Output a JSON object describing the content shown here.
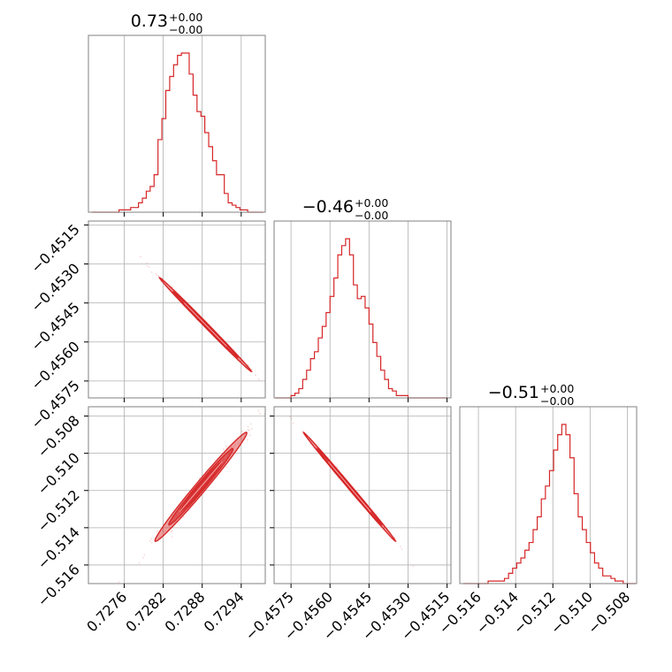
{
  "chart_data": {
    "type": "corner",
    "color": "#d62728",
    "parameters": [
      {
        "title": "0.73",
        "err_plus": "+0.00",
        "err_minus": "−0.00",
        "range": [
          0.72705,
          0.72977
        ],
        "ticks": [
          0.7276,
          0.7282,
          0.7288,
          0.7294
        ],
        "tick_labels": [
          "0.7276",
          "0.7282",
          "0.7288",
          "0.7294"
        ],
        "histogram": {
          "bins": [
            0.7271,
            0.72716,
            0.72722,
            0.72728,
            0.72734,
            0.7274,
            0.72746,
            0.72752,
            0.72758,
            0.72764,
            0.7277,
            0.72776,
            0.72782,
            0.72788,
            0.72794,
            0.728,
            0.72806,
            0.72812,
            0.72818,
            0.72824,
            0.7283,
            0.72836,
            0.72842,
            0.72848,
            0.72854,
            0.7286,
            0.72866,
            0.72872,
            0.72878,
            0.72884,
            0.7289,
            0.72896,
            0.72902,
            0.72908,
            0.72914,
            0.7292,
            0.72926,
            0.72932,
            0.72938,
            0.72944,
            0.7295,
            0.72956,
            0.72962,
            0.72968,
            0.72974
          ],
          "heights": [
            0,
            0,
            0,
            0,
            0,
            0,
            0,
            1,
            1,
            1,
            2,
            2,
            4,
            6,
            9,
            11,
            16,
            31,
            40,
            52,
            58,
            63,
            67,
            68,
            68,
            59,
            50,
            43,
            41,
            34,
            28,
            22,
            16,
            16,
            8,
            4,
            3,
            2,
            1,
            1,
            0,
            0,
            0,
            0,
            0
          ]
        }
      },
      {
        "title": "−0.46",
        "err_plus": "+0.00",
        "err_minus": "−0.00",
        "range": [
          -0.45815,
          -0.45135
        ],
        "ticks": [
          -0.4575,
          -0.456,
          -0.4545,
          -0.453,
          -0.4515
        ],
        "tick_labels": [
          "−0.4575",
          "−0.4560",
          "−0.4545",
          "−0.4530",
          "−0.4515"
        ],
        "histogram": {
          "bins": [
            -0.4581,
            -0.45795,
            -0.4578,
            -0.45765,
            -0.4575,
            -0.45735,
            -0.4572,
            -0.45705,
            -0.4569,
            -0.45675,
            -0.4566,
            -0.45645,
            -0.4563,
            -0.45615,
            -0.456,
            -0.45585,
            -0.4557,
            -0.45555,
            -0.4554,
            -0.45525,
            -0.4551,
            -0.45495,
            -0.4548,
            -0.45465,
            -0.4545,
            -0.45435,
            -0.4542,
            -0.45405,
            -0.4539,
            -0.45375,
            -0.4536,
            -0.45345,
            -0.4533,
            -0.45315,
            -0.453,
            -0.45285,
            -0.4527,
            -0.45255,
            -0.4524,
            -0.45225,
            -0.4521,
            -0.45195,
            -0.4518,
            -0.45165,
            -0.4515
          ],
          "heights": [
            0,
            0,
            0,
            0,
            1,
            2,
            4,
            8,
            12,
            17,
            20,
            26,
            31,
            37,
            44,
            52,
            62,
            66,
            69,
            62,
            49,
            43,
            44,
            39,
            32,
            24,
            18,
            12,
            8,
            4,
            3,
            1,
            1,
            1,
            0,
            0,
            0,
            0,
            0,
            0,
            0,
            0,
            0,
            0,
            0
          ]
        }
      },
      {
        "title": "−0.51",
        "err_plus": "+0.00",
        "err_minus": "−0.00",
        "range": [
          -0.517,
          -0.5075
        ],
        "ticks": [
          -0.516,
          -0.514,
          -0.512,
          -0.51,
          -0.508
        ],
        "tick_labels": [
          "−0.516",
          "−0.514",
          "−0.512",
          "−0.510",
          "−0.508"
        ],
        "histogram": {
          "bins": [
            -0.5168,
            -0.51658,
            -0.51636,
            -0.51614,
            -0.51592,
            -0.5157,
            -0.51548,
            -0.51526,
            -0.51504,
            -0.51482,
            -0.5146,
            -0.51438,
            -0.51416,
            -0.51394,
            -0.51372,
            -0.5135,
            -0.51328,
            -0.51306,
            -0.51284,
            -0.51262,
            -0.5124,
            -0.51218,
            -0.51196,
            -0.51174,
            -0.51152,
            -0.5113,
            -0.51108,
            -0.51086,
            -0.51064,
            -0.51042,
            -0.5102,
            -0.50998,
            -0.50976,
            -0.50954,
            -0.50932,
            -0.5091,
            -0.50888,
            -0.50866,
            -0.50844,
            -0.50822,
            -0.508,
            -0.50778,
            -0.50756
          ],
          "heights": [
            0,
            0,
            0,
            0,
            0,
            0,
            1,
            1,
            1,
            1,
            2,
            4,
            6,
            8,
            10,
            13,
            16,
            21,
            26,
            33,
            38,
            44,
            52,
            58,
            62,
            58,
            49,
            35,
            26,
            21,
            16,
            12,
            8,
            6,
            3,
            3,
            2,
            1,
            1,
            0,
            0,
            0,
            0
          ]
        }
      }
    ],
    "correlations": [
      {
        "pair": [
          0,
          1
        ],
        "slope": -2.55,
        "pivot": [
          0.72885,
          -0.45533
        ],
        "width": 7e-05,
        "alpha": 0.95
      },
      {
        "pair": [
          0,
          2
        ],
        "slope": 4.1,
        "pivot": [
          0.72878,
          -0.5118
        ],
        "width": 0.00028,
        "alpha": 0.9
      },
      {
        "pair": [
          1,
          2
        ],
        "slope": -1.65,
        "pivot": [
          -0.45525,
          -0.5118
        ],
        "width": 0.0001,
        "alpha": 0.95
      }
    ]
  }
}
